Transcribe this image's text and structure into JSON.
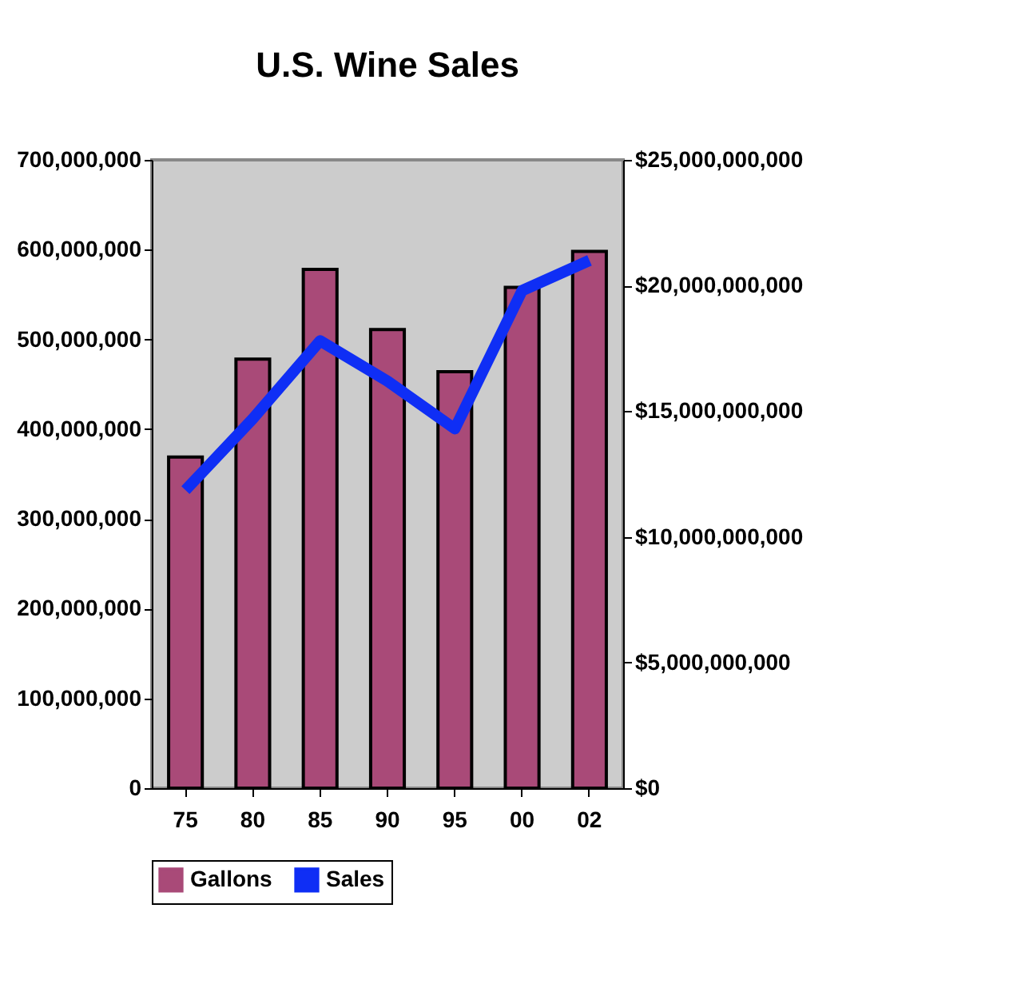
{
  "chart_data": {
    "type": "bar",
    "title": "U.S. Wine Sales",
    "categories": [
      "75",
      "80",
      "85",
      "90",
      "95",
      "00",
      "02"
    ],
    "series": [
      {
        "name": "Gallons",
        "color": "#a94a78",
        "values": [
          369000000,
          478000000,
          578000000,
          511000000,
          464000000,
          558000000,
          598000000
        ]
      },
      {
        "name": "Sales",
        "type": "line",
        "axis": "y2",
        "color": "#0f2ef5",
        "values": [
          11860000000,
          14700000000,
          17800000000,
          16200000000,
          14300000000,
          19800000000,
          21000000000
        ]
      }
    ],
    "ylim": [
      0,
      700000000
    ],
    "yticks": [
      {
        "value": 0,
        "label": "0"
      },
      {
        "value": 100000000,
        "label": "100,000,000"
      },
      {
        "value": 200000000,
        "label": "200,000,000"
      },
      {
        "value": 300000000,
        "label": "300,000,000"
      },
      {
        "value": 400000000,
        "label": "400,000,000"
      },
      {
        "value": 500000000,
        "label": "500,000,000"
      },
      {
        "value": 600000000,
        "label": "600,000,000"
      },
      {
        "value": 700000000,
        "label": "700,000,000"
      }
    ],
    "y2lim": [
      0,
      25000000000
    ],
    "y2ticks": [
      {
        "value": 0,
        "label": "$0"
      },
      {
        "value": 5000000000,
        "label": "$5,000,000,000"
      },
      {
        "value": 10000000000,
        "label": "$10,000,000,000"
      },
      {
        "value": 15000000000,
        "label": "$15,000,000,000"
      },
      {
        "value": 20000000000,
        "label": "$20,000,000,000"
      },
      {
        "value": 25000000000,
        "label": "$25,000,000,000"
      }
    ],
    "grid": false,
    "legend": "bottom"
  }
}
